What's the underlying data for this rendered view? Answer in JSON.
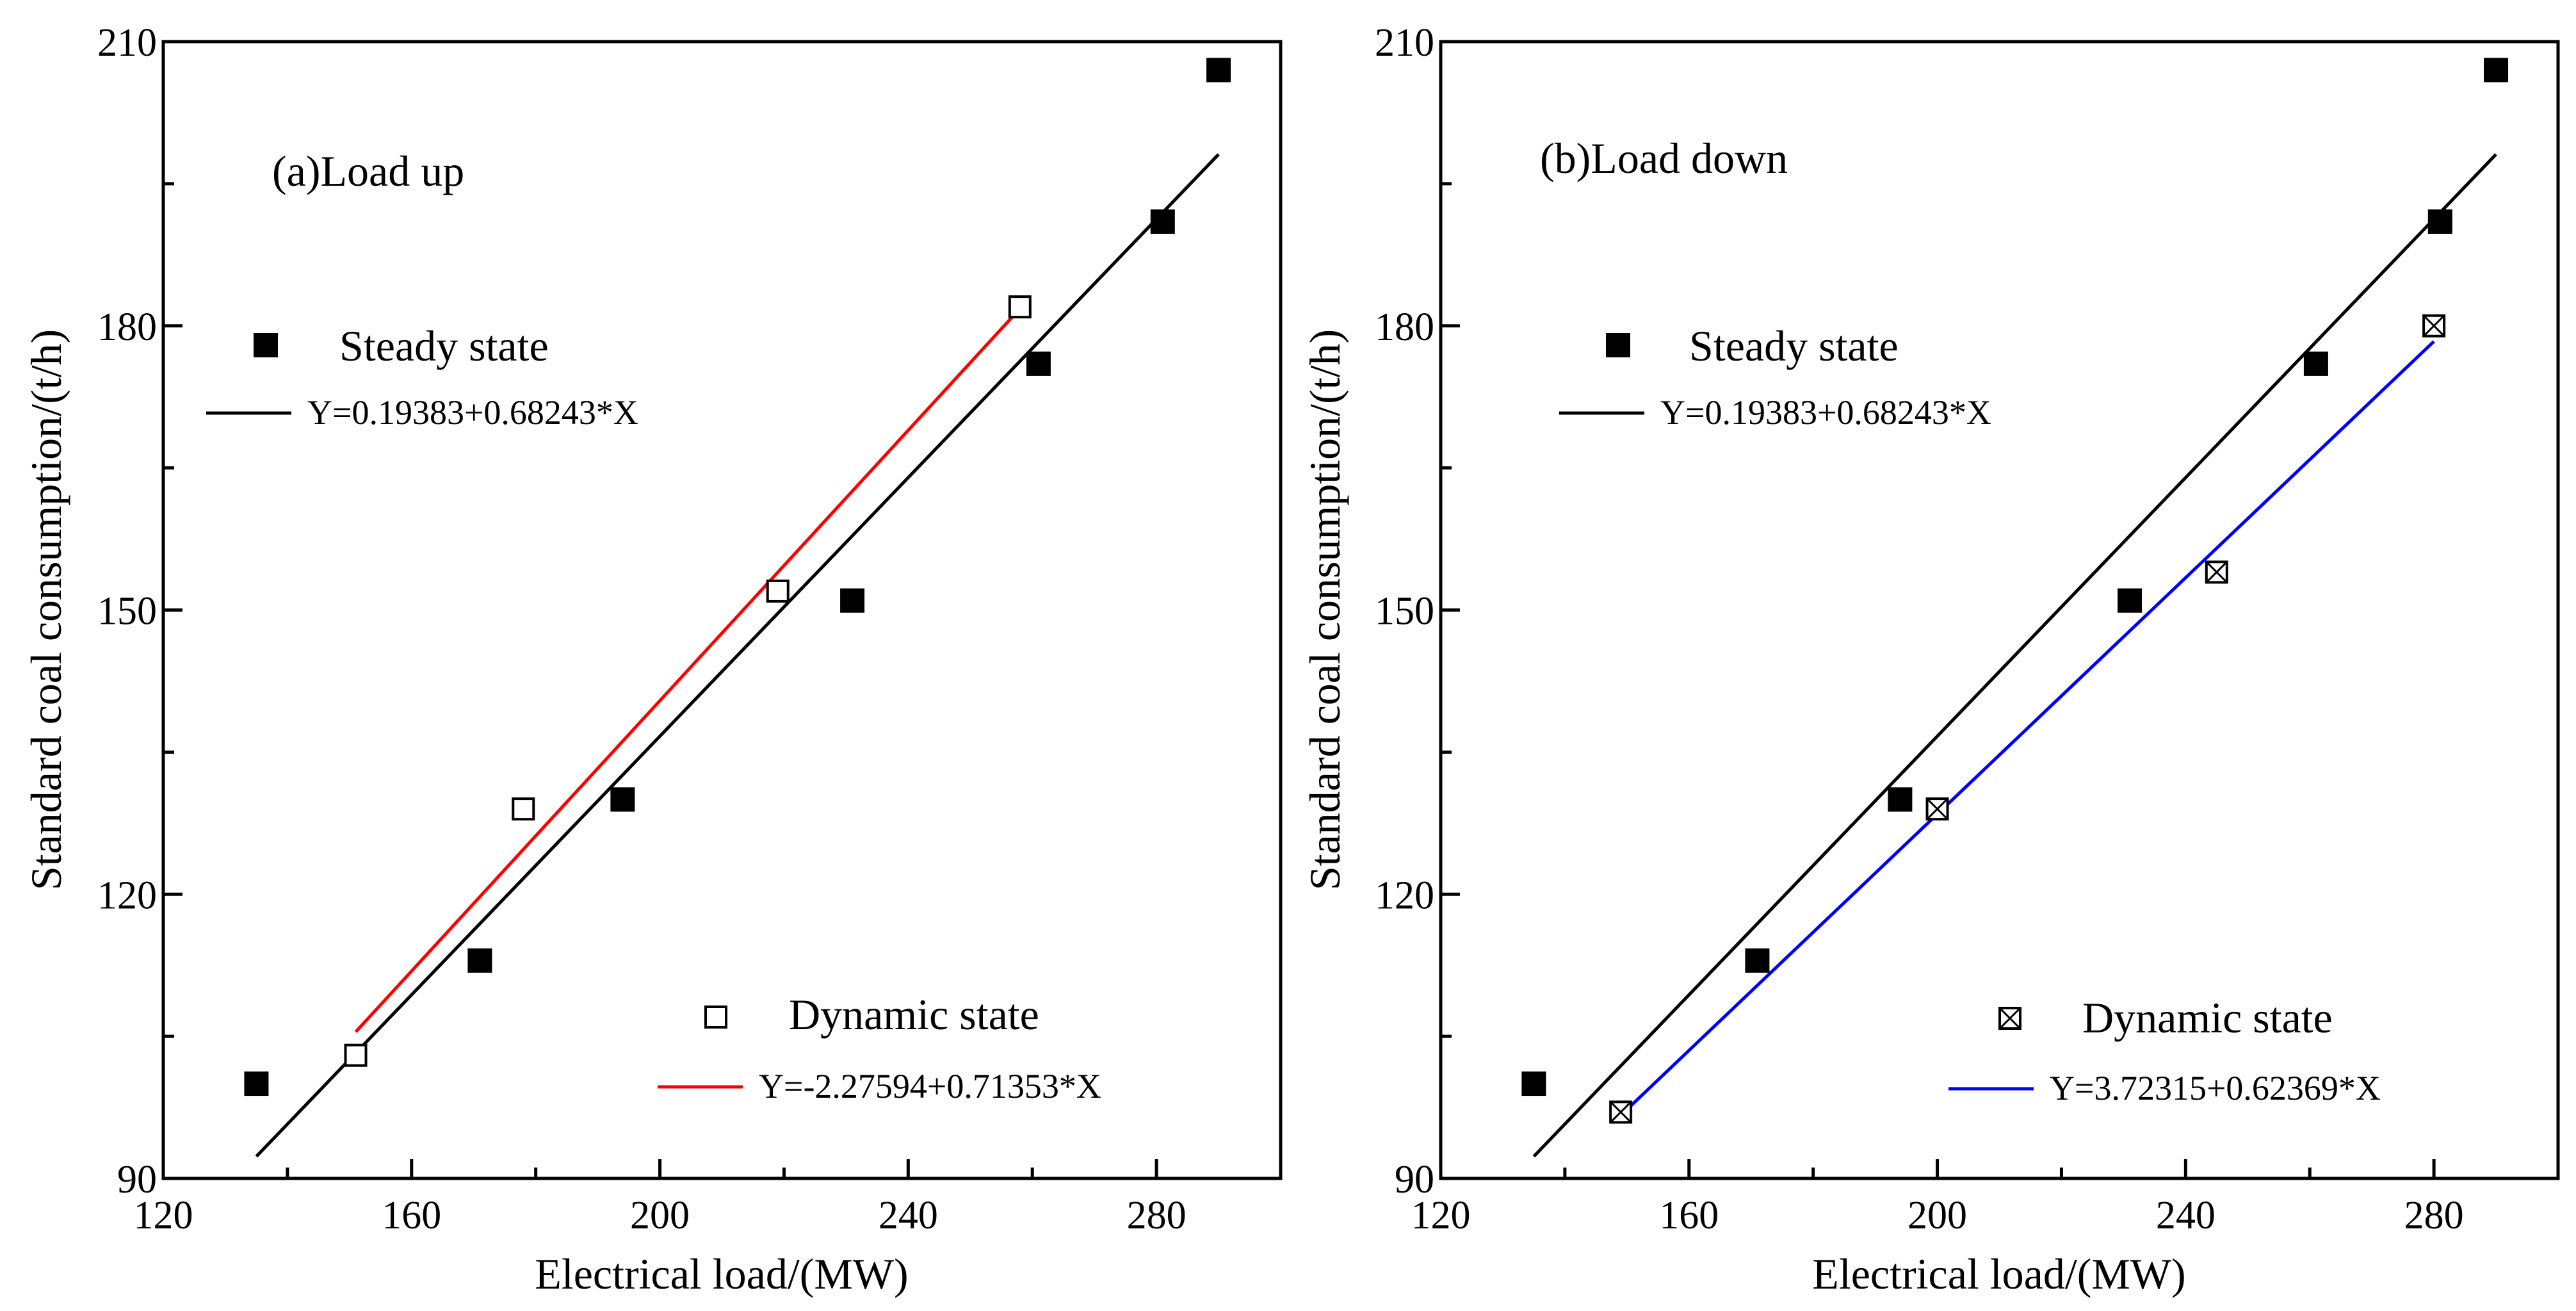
{
  "chart_data": [
    {
      "type": "scatter",
      "title": "(a)Load up",
      "xlabel": "Electrical load/(MW)",
      "ylabel": "Standard coal consumption/(t/h)",
      "xlim": [
        120,
        300
      ],
      "ylim": [
        90,
        210
      ],
      "xticks": [
        120,
        160,
        200,
        240,
        280
      ],
      "yticks": [
        90,
        120,
        150,
        180,
        210
      ],
      "series": [
        {
          "name": "Steady state",
          "marker": "filled-square",
          "color": "#000000",
          "x": [
            135,
            171,
            194,
            231,
            261,
            281,
            290
          ],
          "y": [
            100,
            113,
            130,
            151,
            176,
            191,
            207
          ]
        },
        {
          "name": "Dynamic state",
          "marker": "open-square",
          "color": "#000000",
          "x": [
            151,
            178,
            219,
            258
          ],
          "y": [
            103,
            129,
            152,
            182
          ]
        }
      ],
      "fits": [
        {
          "label": "Y=0.19383+0.68243*X",
          "color": "#000000",
          "intercept": 0.19383,
          "slope": 0.68243,
          "x_range": [
            135,
            290
          ]
        },
        {
          "label": "Y=-2.27594+0.71353*X",
          "color": "#ff0000",
          "intercept": -2.27594,
          "slope": 0.71353,
          "x_range": [
            151,
            258
          ]
        }
      ]
    },
    {
      "type": "scatter",
      "title": "(b)Load down",
      "xlabel": "Electrical load/(MW)",
      "ylabel": "Standard coal consumption/(t/h)",
      "xlim": [
        120,
        300
      ],
      "ylim": [
        90,
        210
      ],
      "xticks": [
        120,
        160,
        200,
        240,
        280
      ],
      "yticks": [
        90,
        120,
        150,
        180,
        210
      ],
      "series": [
        {
          "name": "Steady state",
          "marker": "filled-square",
          "color": "#000000",
          "x": [
            135,
            171,
            194,
            231,
            261,
            281,
            290
          ],
          "y": [
            100,
            113,
            130,
            151,
            176,
            191,
            207
          ]
        },
        {
          "name": "Dynamic state",
          "marker": "crossed-square",
          "color": "#000000",
          "x": [
            149,
            200,
            245,
            280
          ],
          "y": [
            97,
            129,
            154,
            180
          ]
        }
      ],
      "fits": [
        {
          "label": "Y=0.19383+0.68243*X",
          "color": "#000000",
          "intercept": 0.19383,
          "slope": 0.68243,
          "x_range": [
            135,
            290
          ]
        },
        {
          "label": "Y=3.72315+0.62369*X",
          "color": "#0000ff",
          "intercept": 3.72315,
          "slope": 0.62369,
          "x_range": [
            149,
            280
          ]
        }
      ]
    }
  ]
}
